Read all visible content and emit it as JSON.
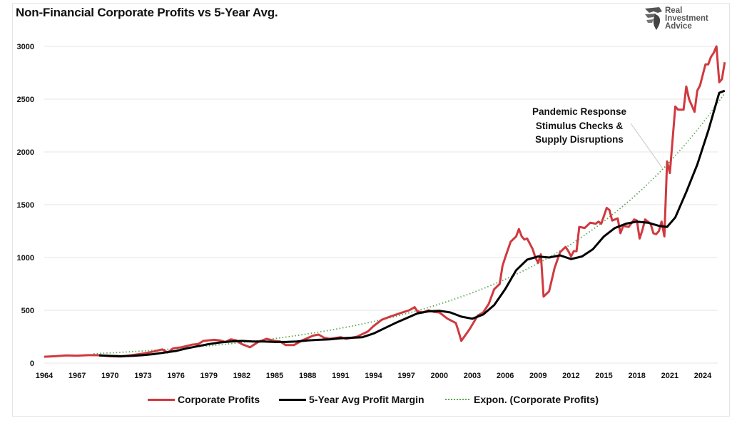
{
  "chart_data": {
    "type": "line",
    "title": "Non-Financial Corporate Profits vs 5-Year Avg.",
    "xlabel": "",
    "ylabel": "",
    "ylim": [
      0,
      3000
    ],
    "xlim": [
      1964,
      2025.75
    ],
    "grid": true,
    "yticks": [
      "0",
      "500",
      "1000",
      "1500",
      "2000",
      "2500",
      "3000"
    ],
    "ytick_values": [
      0,
      500,
      1000,
      1500,
      2000,
      2500,
      3000
    ],
    "xticks": [
      "1964",
      "1967",
      "1970",
      "1973",
      "1976",
      "1979",
      "1982",
      "1985",
      "1988",
      "1991",
      "1994",
      "1997",
      "2000",
      "2003",
      "2006",
      "2009",
      "2012",
      "2015",
      "2018",
      "2021",
      "2024"
    ],
    "xtick_values": [
      1964,
      1967,
      1970,
      1973,
      1976,
      1979,
      1982,
      1985,
      1988,
      1991,
      1994,
      1997,
      2000,
      2003,
      2006,
      2009,
      2012,
      2015,
      2018,
      2021,
      2024
    ],
    "legend_position": "bottom",
    "annotation": {
      "lines": [
        "Pandemic Response",
        "Stimulus Checks &",
        "Supply Disruptions"
      ],
      "points_to": {
        "x": 2020.5,
        "y": 1850
      }
    },
    "series": [
      {
        "name": "Corporate Profits",
        "color": "#d0393f",
        "style": "solid",
        "points": [
          [
            1964,
            60
          ],
          [
            1965,
            65
          ],
          [
            1966,
            72
          ],
          [
            1967,
            70
          ],
          [
            1968,
            75
          ],
          [
            1969,
            74
          ],
          [
            1970,
            65
          ],
          [
            1971,
            62
          ],
          [
            1972,
            75
          ],
          [
            1973,
            90
          ],
          [
            1974,
            110
          ],
          [
            1974.75,
            130
          ],
          [
            1975.25,
            100
          ],
          [
            1975.75,
            140
          ],
          [
            1976.5,
            150
          ],
          [
            1977.5,
            175
          ],
          [
            1978,
            180
          ],
          [
            1978.5,
            210
          ],
          [
            1979.5,
            220
          ],
          [
            1980,
            215
          ],
          [
            1980.5,
            200
          ],
          [
            1981,
            225
          ],
          [
            1981.5,
            215
          ],
          [
            1982,
            180
          ],
          [
            1982.75,
            150
          ],
          [
            1983.5,
            200
          ],
          [
            1984.25,
            230
          ],
          [
            1985,
            210
          ],
          [
            1985.5,
            205
          ],
          [
            1986,
            170
          ],
          [
            1986.75,
            170
          ],
          [
            1987.5,
            215
          ],
          [
            1988.5,
            260
          ],
          [
            1989,
            270
          ],
          [
            1989.5,
            240
          ],
          [
            1990,
            230
          ],
          [
            1991,
            245
          ],
          [
            1991.5,
            230
          ],
          [
            1992.5,
            250
          ],
          [
            1993.5,
            300
          ],
          [
            1994,
            350
          ],
          [
            1994.75,
            410
          ],
          [
            1995.5,
            440
          ],
          [
            1996.5,
            475
          ],
          [
            1997.25,
            500
          ],
          [
            1997.75,
            530
          ],
          [
            1998,
            490
          ],
          [
            1998.5,
            480
          ],
          [
            1999,
            500
          ],
          [
            1999.5,
            485
          ],
          [
            2000,
            480
          ],
          [
            2000.75,
            420
          ],
          [
            2001.5,
            380
          ],
          [
            2001.75,
            300
          ],
          [
            2002,
            210
          ],
          [
            2002.75,
            320
          ],
          [
            2003.5,
            450
          ],
          [
            2004,
            480
          ],
          [
            2004.5,
            560
          ],
          [
            2005,
            700
          ],
          [
            2005.5,
            750
          ],
          [
            2005.75,
            920
          ],
          [
            2006,
            1000
          ],
          [
            2006.5,
            1150
          ],
          [
            2007,
            1200
          ],
          [
            2007.25,
            1270
          ],
          [
            2007.5,
            1200
          ],
          [
            2007.75,
            1170
          ],
          [
            2008,
            1180
          ],
          [
            2008.5,
            1080
          ],
          [
            2008.75,
            1000
          ],
          [
            2009,
            950
          ],
          [
            2009.25,
            1030
          ],
          [
            2009.5,
            630
          ],
          [
            2010,
            680
          ],
          [
            2010.5,
            900
          ],
          [
            2011,
            1050
          ],
          [
            2011.5,
            1100
          ],
          [
            2011.75,
            1060
          ],
          [
            2012,
            1010
          ],
          [
            2012.25,
            1060
          ],
          [
            2012.5,
            1060
          ],
          [
            2012.75,
            1290
          ],
          [
            2013.25,
            1280
          ],
          [
            2013.75,
            1330
          ],
          [
            2014.25,
            1320
          ],
          [
            2014.5,
            1340
          ],
          [
            2014.75,
            1320
          ],
          [
            2015.25,
            1470
          ],
          [
            2015.5,
            1450
          ],
          [
            2015.75,
            1350
          ],
          [
            2016.25,
            1370
          ],
          [
            2016.5,
            1230
          ],
          [
            2016.75,
            1300
          ],
          [
            2017.25,
            1290
          ],
          [
            2017.75,
            1360
          ],
          [
            2018,
            1350
          ],
          [
            2018.25,
            1180
          ],
          [
            2018.5,
            1260
          ],
          [
            2018.75,
            1360
          ],
          [
            2019.25,
            1320
          ],
          [
            2019.5,
            1230
          ],
          [
            2019.75,
            1220
          ],
          [
            2020,
            1250
          ],
          [
            2020.25,
            1340
          ],
          [
            2020.5,
            1200
          ],
          [
            2020.75,
            1910
          ],
          [
            2021,
            1800
          ],
          [
            2021.5,
            2430
          ],
          [
            2021.75,
            2400
          ],
          [
            2022.25,
            2400
          ],
          [
            2022.5,
            2620
          ],
          [
            2022.75,
            2500
          ],
          [
            2023.25,
            2380
          ],
          [
            2023.5,
            2580
          ],
          [
            2023.75,
            2630
          ],
          [
            2024.25,
            2830
          ],
          [
            2024.5,
            2830
          ],
          [
            2024.75,
            2900
          ],
          [
            2025,
            2940
          ],
          [
            2025.25,
            3000
          ],
          [
            2025.5,
            2660
          ],
          [
            2025.75,
            2690
          ],
          [
            2026,
            2850
          ]
        ]
      },
      {
        "name": "5-Year Avg Profit Margin",
        "color": "#000000",
        "style": "solid",
        "points": [
          [
            1969,
            72
          ],
          [
            1970,
            68
          ],
          [
            1971,
            65
          ],
          [
            1972,
            68
          ],
          [
            1973,
            75
          ],
          [
            1974,
            85
          ],
          [
            1975,
            100
          ],
          [
            1976,
            115
          ],
          [
            1977,
            140
          ],
          [
            1978,
            160
          ],
          [
            1979,
            180
          ],
          [
            1980,
            195
          ],
          [
            1981,
            205
          ],
          [
            1982,
            210
          ],
          [
            1983,
            205
          ],
          [
            1984,
            205
          ],
          [
            1985,
            200
          ],
          [
            1986,
            200
          ],
          [
            1987,
            205
          ],
          [
            1988,
            215
          ],
          [
            1989,
            220
          ],
          [
            1990,
            225
          ],
          [
            1991,
            235
          ],
          [
            1992,
            240
          ],
          [
            1993,
            245
          ],
          [
            1994,
            280
          ],
          [
            1995,
            330
          ],
          [
            1996,
            380
          ],
          [
            1997,
            425
          ],
          [
            1998,
            470
          ],
          [
            1999,
            490
          ],
          [
            2000,
            495
          ],
          [
            2001,
            480
          ],
          [
            2002,
            440
          ],
          [
            2003,
            420
          ],
          [
            2004,
            460
          ],
          [
            2005,
            550
          ],
          [
            2006,
            700
          ],
          [
            2007,
            880
          ],
          [
            2008,
            980
          ],
          [
            2009,
            1010
          ],
          [
            2010,
            1000
          ],
          [
            2011,
            1020
          ],
          [
            2012,
            985
          ],
          [
            2013,
            1010
          ],
          [
            2014,
            1080
          ],
          [
            2015,
            1200
          ],
          [
            2016,
            1280
          ],
          [
            2017,
            1320
          ],
          [
            2018,
            1340
          ],
          [
            2019,
            1330
          ],
          [
            2020,
            1300
          ],
          [
            2020.75,
            1290
          ],
          [
            2021.5,
            1380
          ],
          [
            2022.5,
            1620
          ],
          [
            2023.5,
            1880
          ],
          [
            2024.5,
            2200
          ],
          [
            2025.5,
            2560
          ],
          [
            2026,
            2580
          ]
        ]
      },
      {
        "name": "Expon. (Corporate Profits)",
        "color": "#5aa454",
        "style": "dotted",
        "fit": {
          "type": "exponential",
          "a": 68,
          "b": 0.0585,
          "x0": 1964
        }
      }
    ]
  },
  "branding": {
    "line1": "Real",
    "line2": "Investment",
    "line3": "Advice"
  }
}
